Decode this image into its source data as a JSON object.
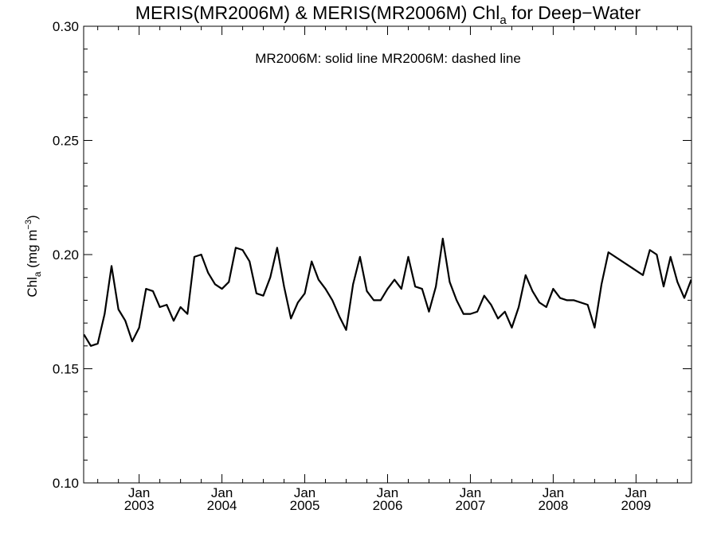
{
  "chart_data": {
    "type": "line",
    "title": {
      "main": "MERIS(MR2006M) & MERIS(MR2006M)  Chl",
      "sub": "a",
      "tail": " for Deep−Water"
    },
    "annotation": "MR2006M: solid line   MR2006M: dashed line",
    "ylabel": {
      "main": "Chl",
      "sub": "a",
      "unit": " (mg m",
      "sup": "−3",
      "close": ")"
    },
    "ylim": [
      0.1,
      0.3
    ],
    "yticks": [
      "0.10",
      "0.15",
      "0.20",
      "0.25",
      "0.30"
    ],
    "xlim": [
      2002.33,
      2009.67
    ],
    "xticks": [
      {
        "month": "Jan",
        "year": "2003"
      },
      {
        "month": "Jan",
        "year": "2004"
      },
      {
        "month": "Jan",
        "year": "2005"
      },
      {
        "month": "Jan",
        "year": "2006"
      },
      {
        "month": "Jan",
        "year": "2007"
      },
      {
        "month": "Jan",
        "year": "2008"
      },
      {
        "month": "Jan",
        "year": "2009"
      }
    ],
    "grid": false,
    "series": [
      {
        "style": "solid",
        "color": "#000000",
        "points": [
          [
            "2002-05",
            0.165
          ],
          [
            "2002-06",
            0.16
          ],
          [
            "2002-07",
            0.161
          ],
          [
            "2002-08",
            0.174
          ],
          [
            "2002-09",
            0.195
          ],
          [
            "2002-10",
            0.176
          ],
          [
            "2002-11",
            0.171
          ],
          [
            "2002-12",
            0.162
          ],
          [
            "2003-01",
            0.168
          ],
          [
            "2003-02",
            0.185
          ],
          [
            "2003-03",
            0.184
          ],
          [
            "2003-04",
            0.177
          ],
          [
            "2003-05",
            0.178
          ],
          [
            "2003-06",
            0.171
          ],
          [
            "2003-07",
            0.177
          ],
          [
            "2003-08",
            0.174
          ],
          [
            "2003-09",
            0.199
          ],
          [
            "2003-10",
            0.2
          ],
          [
            "2003-11",
            0.192
          ],
          [
            "2003-12",
            0.187
          ],
          [
            "2004-01",
            0.185
          ],
          [
            "2004-02",
            0.188
          ],
          [
            "2004-03",
            0.203
          ],
          [
            "2004-04",
            0.202
          ],
          [
            "2004-05",
            0.197
          ],
          [
            "2004-06",
            0.183
          ],
          [
            "2004-07",
            0.182
          ],
          [
            "2004-08",
            0.19
          ],
          [
            "2004-09",
            0.203
          ],
          [
            "2004-10",
            0.186
          ],
          [
            "2004-11",
            0.172
          ],
          [
            "2004-12",
            0.179
          ],
          [
            "2005-01",
            0.183
          ],
          [
            "2005-02",
            0.197
          ],
          [
            "2005-03",
            0.189
          ],
          [
            "2005-04",
            0.185
          ],
          [
            "2005-05",
            0.18
          ],
          [
            "2005-06",
            0.173
          ],
          [
            "2005-07",
            0.167
          ],
          [
            "2005-08",
            0.187
          ],
          [
            "2005-09",
            0.199
          ],
          [
            "2005-10",
            0.184
          ],
          [
            "2005-11",
            0.18
          ],
          [
            "2005-12",
            0.18
          ],
          [
            "2006-01",
            0.185
          ],
          [
            "2006-02",
            0.189
          ],
          [
            "2006-03",
            0.185
          ],
          [
            "2006-04",
            0.199
          ],
          [
            "2006-05",
            0.186
          ],
          [
            "2006-06",
            0.185
          ],
          [
            "2006-07",
            0.175
          ],
          [
            "2006-08",
            0.186
          ],
          [
            "2006-09",
            0.207
          ],
          [
            "2006-10",
            0.188
          ],
          [
            "2006-11",
            0.18
          ],
          [
            "2006-12",
            0.174
          ],
          [
            "2007-01",
            0.174
          ],
          [
            "2007-02",
            0.175
          ],
          [
            "2007-03",
            0.182
          ],
          [
            "2007-04",
            0.178
          ],
          [
            "2007-05",
            0.172
          ],
          [
            "2007-06",
            0.175
          ],
          [
            "2007-07",
            0.168
          ],
          [
            "2007-08",
            0.177
          ],
          [
            "2007-09",
            0.191
          ],
          [
            "2007-10",
            0.184
          ],
          [
            "2007-11",
            0.179
          ],
          [
            "2007-12",
            0.177
          ],
          [
            "2008-01",
            0.185
          ],
          [
            "2008-02",
            0.181
          ],
          [
            "2008-03",
            0.18
          ],
          [
            "2008-04",
            0.18
          ],
          [
            "2008-06",
            0.178
          ],
          [
            "2008-07",
            0.168
          ],
          [
            "2008-08",
            0.187
          ],
          [
            "2008-09",
            0.201
          ],
          [
            "2008-12",
            0.195
          ],
          [
            "2009-02",
            0.191
          ],
          [
            "2009-03",
            0.202
          ],
          [
            "2009-04",
            0.2
          ],
          [
            "2009-05",
            0.186
          ],
          [
            "2009-06",
            0.199
          ],
          [
            "2009-07",
            0.188
          ],
          [
            "2009-08",
            0.181
          ],
          [
            "2009-09",
            0.189
          ]
        ]
      }
    ]
  }
}
